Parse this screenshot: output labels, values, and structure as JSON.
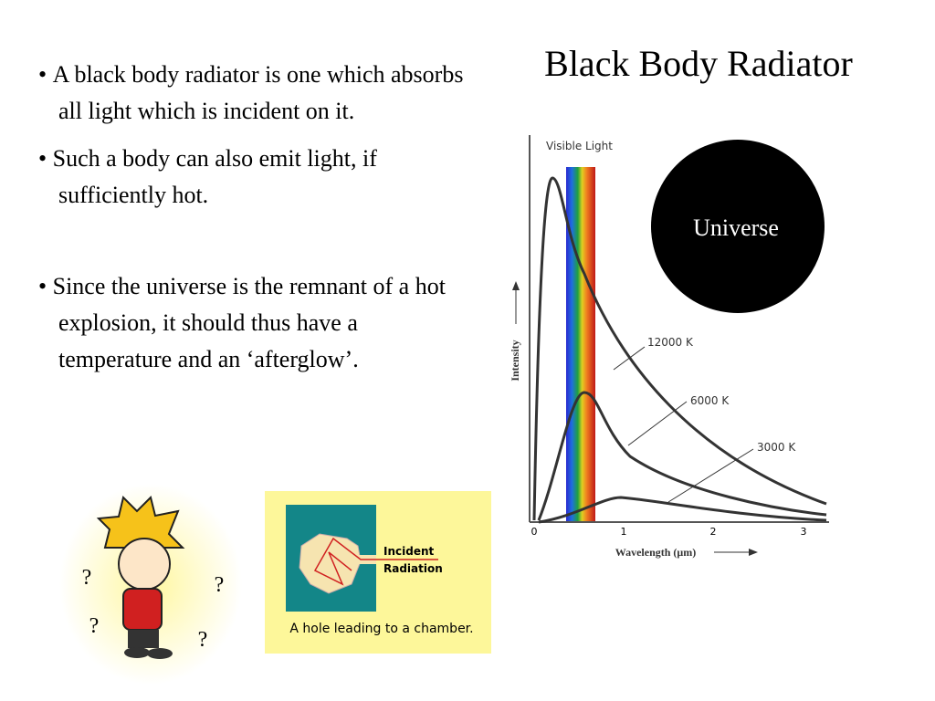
{
  "title": "Black Body Radiator",
  "bullets": [
    "A black body radiator is one which absorbs all light which is incident on it.",
    "Such a body can also emit light, if sufficiently hot.",
    "Since the universe is the remnant of a hot explosion, it should thus have a temperature and an ‘afterglow’."
  ],
  "circle_label": "Universe",
  "graph": {
    "band_label": "Visible Light",
    "curve_labels": [
      "12000 K",
      "6000 K",
      "3000 K"
    ],
    "y_label": "Intensity",
    "x_label": "Wavelength (μm)",
    "x_ticks": [
      0,
      1,
      2,
      3
    ]
  },
  "cartoon": {
    "marks": [
      "?",
      "?",
      "?",
      "?"
    ]
  },
  "chamber": {
    "label_lines": [
      "Incident",
      "Radiation"
    ],
    "caption": "A hole leading to a chamber."
  }
}
